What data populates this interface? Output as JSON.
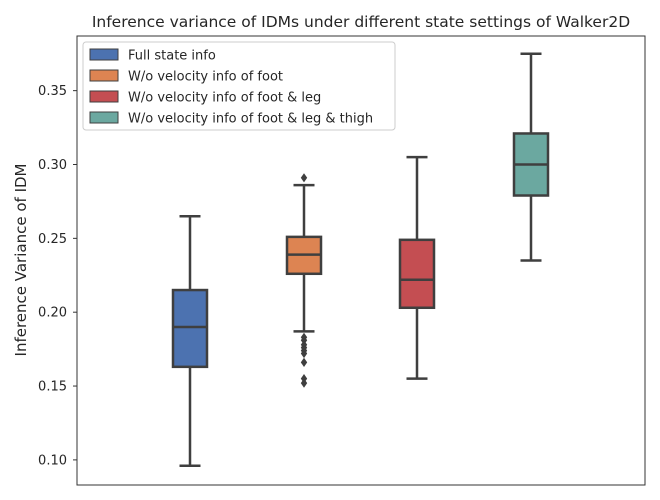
{
  "chart_data": {
    "type": "box",
    "title": "Inference variance of IDMs under different state settings of Walker2D",
    "xlabel": "",
    "ylabel": "Inference Variance of IDM",
    "ylim": [
      0.083,
      0.387
    ],
    "yticks": [
      0.1,
      0.15,
      0.2,
      0.25,
      0.3,
      0.35
    ],
    "ytick_labels": [
      "0.10",
      "0.15",
      "0.20",
      "0.25",
      "0.30",
      "0.35"
    ],
    "grid": false,
    "legend_position": "top-left",
    "series": [
      {
        "name": "Full state info",
        "color": "#4c72b0",
        "whisker_low": 0.096,
        "q1": 0.163,
        "median": 0.19,
        "q3": 0.215,
        "whisker_high": 0.265,
        "outliers": []
      },
      {
        "name": "W/o velocity info of foot",
        "color": "#dd8452",
        "whisker_low": 0.187,
        "q1": 0.226,
        "median": 0.239,
        "q3": 0.251,
        "whisker_high": 0.286,
        "outliers": [
          0.291,
          0.183,
          0.181,
          0.178,
          0.176,
          0.174,
          0.172,
          0.166,
          0.155,
          0.152
        ]
      },
      {
        "name": "W/o velocity info of foot & leg",
        "color": "#c44e52",
        "whisker_low": 0.155,
        "q1": 0.203,
        "median": 0.222,
        "q3": 0.249,
        "whisker_high": 0.305,
        "outliers": []
      },
      {
        "name": "W/o velocity info of foot & leg & thigh",
        "color": "#6ba8a0",
        "whisker_low": 0.235,
        "q1": 0.279,
        "median": 0.3,
        "q3": 0.321,
        "whisker_high": 0.375,
        "outliers": []
      }
    ]
  }
}
